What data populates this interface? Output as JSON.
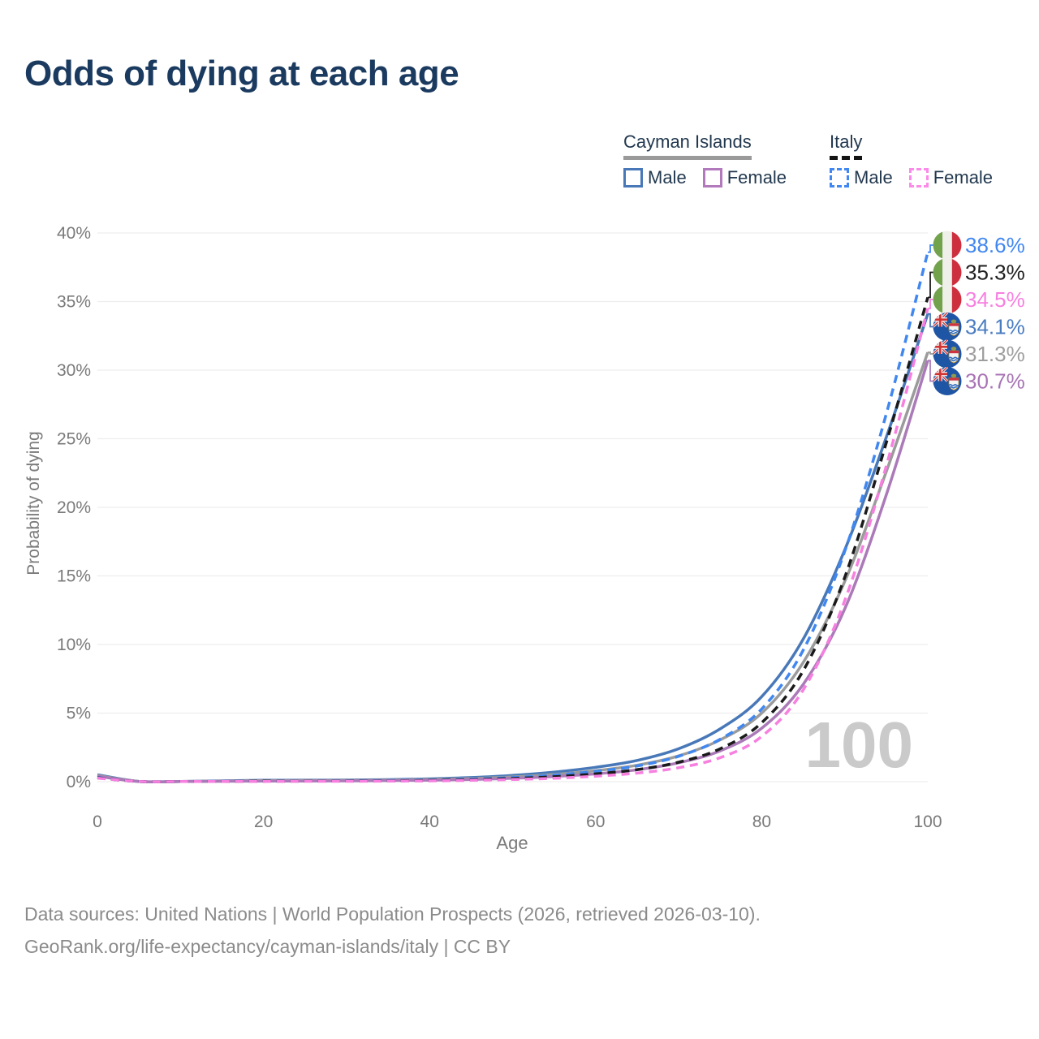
{
  "title": "Odds of dying at each age",
  "legend": {
    "groups": [
      {
        "name": "Cayman Islands",
        "line_style": "solid",
        "underline_color": "#9a9a9a",
        "items": [
          {
            "label": "Male",
            "color": "#4878b8",
            "line": "solid"
          },
          {
            "label": "Female",
            "color": "#b279bd",
            "line": "solid"
          }
        ]
      },
      {
        "name": "Italy",
        "line_style": "dashed",
        "underline_color": "#141414",
        "items": [
          {
            "label": "Male",
            "color": "#4187f0",
            "line": "dashed"
          },
          {
            "label": "Female",
            "color": "#fb8ae8",
            "line": "dashed"
          }
        ]
      }
    ]
  },
  "chart_data": {
    "type": "line",
    "title": "Odds of dying at each age",
    "xlabel": "Age",
    "ylabel": "Probability of dying",
    "xlim": [
      0,
      100
    ],
    "ylim": [
      0,
      40
    ],
    "x_ticks": [
      0,
      20,
      40,
      60,
      80,
      100
    ],
    "y_ticks": [
      0,
      5,
      10,
      15,
      20,
      25,
      30,
      35,
      40
    ],
    "y_tick_format": "%",
    "grid": "horizontal",
    "age_marker": "100",
    "x": [
      0,
      5,
      10,
      15,
      20,
      25,
      30,
      35,
      40,
      45,
      50,
      55,
      60,
      65,
      70,
      75,
      80,
      85,
      90,
      95,
      100
    ],
    "series": [
      {
        "id": "cayman-islands-male",
        "country": "Cayman Islands",
        "sex": "Male",
        "flag": "cayman",
        "color": "#4878b8",
        "label_color": "#4a7cc1",
        "dash": "solid",
        "end_label": "34.1%",
        "values": [
          0.5,
          0.02,
          0.02,
          0.06,
          0.1,
          0.11,
          0.12,
          0.15,
          0.21,
          0.3,
          0.46,
          0.7,
          1.05,
          1.55,
          2.4,
          3.85,
          6.2,
          10.4,
          16.9,
          25.1,
          34.1
        ]
      },
      {
        "id": "cayman-islands-total",
        "country": "Cayman Islands",
        "sex": "Both",
        "flag": "cayman",
        "color": "#9b9b9b",
        "label_color": "#9e9e9e",
        "dash": "solid",
        "end_label": "31.3%",
        "values": [
          0.45,
          0.02,
          0.02,
          0.04,
          0.07,
          0.08,
          0.09,
          0.11,
          0.16,
          0.23,
          0.35,
          0.53,
          0.8,
          1.2,
          1.88,
          3.05,
          5.0,
          8.7,
          14.6,
          22.6,
          31.3
        ]
      },
      {
        "id": "cayman-islands-female",
        "country": "Cayman Islands",
        "sex": "Female",
        "flag": "cayman",
        "color": "#ab7ab8",
        "label_color": "#a873b5",
        "dash": "solid",
        "end_label": "30.7%",
        "values": [
          0.4,
          0.01,
          0.01,
          0.03,
          0.04,
          0.05,
          0.06,
          0.08,
          0.11,
          0.16,
          0.25,
          0.38,
          0.57,
          0.87,
          1.38,
          2.25,
          3.9,
          7.1,
          12.6,
          20.9,
          30.7
        ]
      },
      {
        "id": "italy-male",
        "country": "Italy",
        "sex": "Male",
        "flag": "italy",
        "color": "#4187f0",
        "label_color": "#4187f0",
        "dash": "dashed",
        "end_label": "38.6%",
        "values": [
          0.3,
          0.01,
          0.01,
          0.03,
          0.05,
          0.05,
          0.06,
          0.08,
          0.12,
          0.19,
          0.3,
          0.48,
          0.75,
          1.15,
          1.85,
          3.1,
          5.3,
          9.6,
          16.8,
          26.8,
          38.6
        ]
      },
      {
        "id": "italy-total",
        "country": "Italy",
        "sex": "Both",
        "flag": "italy",
        "color": "#1a1a1a",
        "label_color": "#202020",
        "dash": "dashed",
        "end_label": "35.3%",
        "values": [
          0.28,
          0.01,
          0.01,
          0.02,
          0.04,
          0.04,
          0.05,
          0.06,
          0.09,
          0.14,
          0.23,
          0.36,
          0.57,
          0.88,
          1.42,
          2.4,
          4.3,
          8.1,
          14.9,
          24.7,
          35.3
        ]
      },
      {
        "id": "italy-female",
        "country": "Italy",
        "sex": "Female",
        "flag": "italy",
        "color": "#f77fe0",
        "label_color": "#f77fe0",
        "dash": "dashed",
        "end_label": "34.5%",
        "values": [
          0.26,
          0.01,
          0.01,
          0.02,
          0.02,
          0.03,
          0.03,
          0.04,
          0.06,
          0.1,
          0.16,
          0.25,
          0.4,
          0.63,
          1.02,
          1.75,
          3.3,
          6.7,
          13.2,
          23.0,
          34.5
        ]
      }
    ]
  },
  "footer": {
    "line1": "Data sources: United Nations | World Population Prospects (2026, retrieved 2026-03-10).",
    "line2": "GeoRank.org/life-expectancy/cayman-islands/italy | CC BY"
  }
}
